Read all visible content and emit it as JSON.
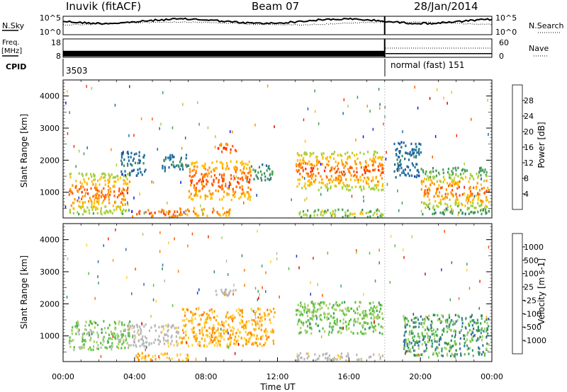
{
  "header": {
    "station": "Inuvik (fitACF)",
    "beam": "Beam 07",
    "date": "28/Jan/2014"
  },
  "chart_data": [
    {
      "name": "noise",
      "type": "line",
      "left_label": "N.Sky",
      "right_label": "N.Search",
      "ticks_left": [
        "10^5",
        "10^0"
      ],
      "ticks_right": [
        "10^5",
        "10^0"
      ]
    },
    {
      "name": "frequency-nave",
      "type": "line",
      "left_label_line1": "Freq.",
      "left_label_line2": "[MHz]",
      "right_label": "Nave",
      "ticks_left": [
        "18",
        "8"
      ],
      "ticks_right": [
        "60",
        "0"
      ],
      "freq_mhz": 10,
      "nave_before_switch": 60,
      "nave_after_switch": 30
    },
    {
      "name": "cpid",
      "type": "table",
      "label": "CPID",
      "segments": [
        {
          "start_h": 0,
          "end_h": 18,
          "text": "3503"
        },
        {
          "start_h": 18,
          "end_h": 24,
          "text": "normal (fast) 151"
        }
      ]
    },
    {
      "name": "power",
      "type": "heatmap",
      "ylabel": "Slant Range [km]",
      "yticks": [
        "1000",
        "2000",
        "3000",
        "4000"
      ],
      "ylim": [
        200,
        4500
      ],
      "xlim": [
        0,
        24
      ],
      "colorbar_label": "Power [dB]",
      "colorbar_ticks": [
        "4",
        "8",
        "12",
        "16",
        "20",
        "24",
        "28"
      ],
      "colorbar_colors": [
        "#0a0aff",
        "#1c3cb4",
        "#1e6a9c",
        "#3c8a6a",
        "#44a050",
        "#a6d040",
        "#ffbe00",
        "#ff9000",
        "#ff5a00",
        "#ff2a00",
        "#e80000"
      ],
      "regions": [
        {
          "h0": 0.3,
          "h1": 3.7,
          "r0": 350,
          "r1": 1650,
          "v0": 9,
          "v1": 28
        },
        {
          "h0": 3.2,
          "h1": 4.6,
          "r0": 1550,
          "r1": 2300,
          "v0": 4,
          "v1": 10
        },
        {
          "h0": 3.8,
          "h1": 6.5,
          "r0": 250,
          "r1": 500,
          "v0": 18,
          "v1": 28
        },
        {
          "h0": 5.5,
          "h1": 7.0,
          "r0": 1700,
          "r1": 2200,
          "v0": 4,
          "v1": 12
        },
        {
          "h0": 6.5,
          "h1": 9.4,
          "r0": 300,
          "r1": 550,
          "v0": 16,
          "v1": 26
        },
        {
          "h0": 7.0,
          "h1": 10.5,
          "r0": 800,
          "r1": 2000,
          "v0": 14,
          "v1": 28
        },
        {
          "h0": 8.5,
          "h1": 9.7,
          "r0": 2250,
          "r1": 2550,
          "v0": 18,
          "v1": 28
        },
        {
          "h0": 10.5,
          "h1": 11.7,
          "r0": 1400,
          "r1": 1900,
          "v0": 6,
          "v1": 14
        },
        {
          "h0": 13.0,
          "h1": 18.0,
          "r0": 1100,
          "r1": 2300,
          "v0": 10,
          "v1": 28
        },
        {
          "h0": 13.0,
          "h1": 18.0,
          "r0": 250,
          "r1": 500,
          "v0": 8,
          "v1": 20
        },
        {
          "h0": 18.5,
          "h1": 20.0,
          "r0": 1500,
          "r1": 2600,
          "v0": 4,
          "v1": 10
        },
        {
          "h0": 20.0,
          "h1": 23.8,
          "r0": 350,
          "r1": 1800,
          "v0": 4,
          "v1": 28
        }
      ],
      "gap_h": 18.0
    },
    {
      "name": "velocity",
      "type": "heatmap",
      "ylabel": "Slant Range [km]",
      "yticks": [
        "1000",
        "2000",
        "3000",
        "4000"
      ],
      "ylim": [
        200,
        4500
      ],
      "xlim": [
        0,
        24
      ],
      "xticks": [
        "00:00",
        "04:00",
        "08:00",
        "12:00",
        "16:00",
        "20:00",
        "00:00"
      ],
      "xlabel": "Time UT",
      "colorbar_label": "Velocity [m s-1]",
      "colorbar_ticks": [
        "1000",
        "500",
        "100",
        "25",
        "-25",
        "-100",
        "-500",
        "-1000"
      ],
      "colorbar_colors": [
        "#1e3cc8",
        "#3a6cb0",
        "#2f8a5a",
        "#3e9e6a",
        "#5cc040",
        "#a8d06a",
        "#b8b8b8",
        "#ffd040",
        "#ffa000",
        "#ff7a00",
        "#ff5000",
        "#ff2000",
        "#e00000"
      ],
      "regions": [
        {
          "h0": 0.3,
          "h1": 3.7,
          "r0": 600,
          "r1": 1500,
          "v0": -500,
          "v1": -25
        },
        {
          "h0": 3.6,
          "h1": 6.5,
          "r0": 700,
          "r1": 1400,
          "v0": 25,
          "v1": 100
        },
        {
          "h0": 4.0,
          "h1": 7.0,
          "r0": 250,
          "r1": 500,
          "v0": 100,
          "v1": 500
        },
        {
          "h0": 6.5,
          "h1": 11.8,
          "r0": 700,
          "r1": 1900,
          "v0": 100,
          "v1": 500
        },
        {
          "h0": 8.5,
          "h1": 9.7,
          "r0": 2250,
          "r1": 2550,
          "v0": -25,
          "v1": 25
        },
        {
          "h0": 13.0,
          "h1": 18.0,
          "r0": 1100,
          "r1": 2100,
          "v0": -500,
          "v1": -100
        },
        {
          "h0": 13.0,
          "h1": 18.0,
          "r0": 250,
          "r1": 500,
          "v0": 25,
          "v1": 100
        },
        {
          "h0": 19.0,
          "h1": 23.8,
          "r0": 400,
          "r1": 1700,
          "v0": -1000,
          "v1": -100
        }
      ],
      "gap_h": 18.0
    }
  ]
}
